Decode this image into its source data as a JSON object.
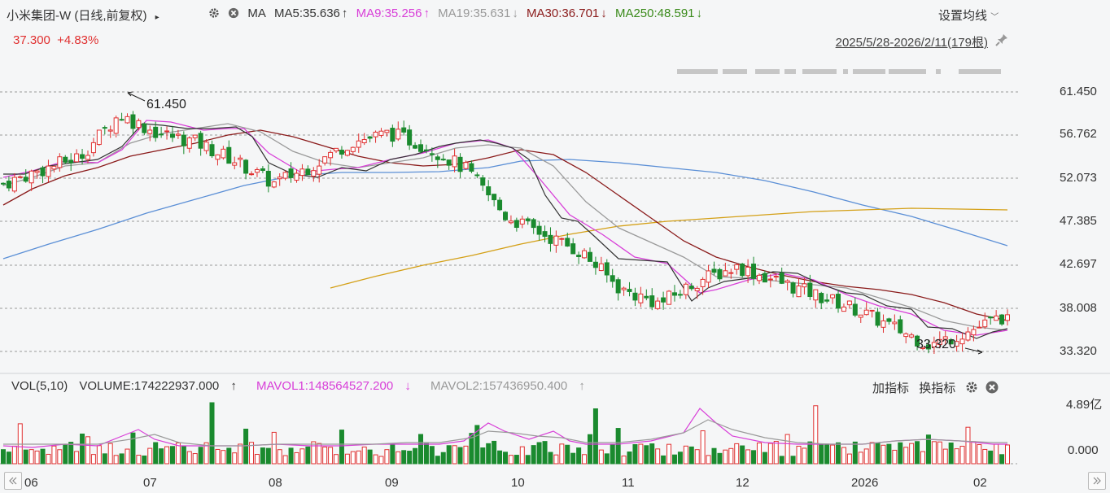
{
  "header": {
    "stock_title": "小米集团-W (日线,前复权)",
    "ma_label": "MA",
    "ma5": "MA5:35.636",
    "ma9": "MA9:35.256",
    "ma19": "MA19:35.631",
    "ma30": "MA30:36.701",
    "ma250": "MA250:48.591",
    "arrow_up": "↑",
    "arrow_down": "↓",
    "set_ma": "设置均线"
  },
  "price": {
    "last": "37.300",
    "change_pct": "+4.83%",
    "range": "2025/5/28-2026/2/11(179根)"
  },
  "price_axis": [
    "61.450",
    "56.762",
    "52.073",
    "47.385",
    "42.697",
    "38.008",
    "33.320"
  ],
  "annotations": {
    "high": "61.450",
    "low": "33.320"
  },
  "volume": {
    "label": "VOL(5,10)",
    "volume": "VOLUME:174222937.000",
    "mavol1": "MAVOL1:148564527.200",
    "mavol2": "MAVOL2:157436950.400",
    "axis_top": "4.89亿",
    "axis_bottom": "0.000"
  },
  "indicator_buttons": {
    "add": "加指标",
    "switch": "换指标"
  },
  "x_axis": [
    "06",
    "07",
    "08",
    "09",
    "10",
    "11",
    "12",
    "2026",
    "02"
  ],
  "colors": {
    "up": "#e03030",
    "down": "#1a8a2e",
    "ma5": "#333333",
    "ma9": "#d83fd8",
    "ma19": "#999999",
    "ma30": "#8a1a1a",
    "ma250": "#5a8a1a",
    "ma120": "#5b8fd6",
    "ma_gold": "#d4a017"
  },
  "chart_data": {
    "type": "candlestick",
    "period": "2025/5/28-2026/2/11",
    "bars": 179,
    "ylim": [
      33.32,
      61.45
    ],
    "x_ticks": [
      "06",
      "07",
      "08",
      "09",
      "10",
      "11",
      "12",
      "2026",
      "02"
    ],
    "close_trend": [
      51.5,
      53.0,
      54.5,
      59.0,
      57.0,
      56.0,
      54.0,
      51.5,
      53.5,
      56.0,
      57.0,
      55.5,
      53.0,
      48.0,
      46.0,
      44.0,
      40.0,
      38.5,
      41.0,
      42.5,
      41.0,
      39.5,
      38.0,
      36.0,
      34.0,
      35.5,
      37.3
    ],
    "last_close": 37.3,
    "change_pct": 4.83,
    "ma5": 35.636,
    "ma9": 35.256,
    "ma19": 35.631,
    "ma30": 36.701,
    "ma250": 48.591,
    "volume_last": 174222937,
    "mavol1": 148564527.2,
    "mavol2": 157436950.4,
    "volume_ylim": [
      0,
      489000000
    ]
  }
}
